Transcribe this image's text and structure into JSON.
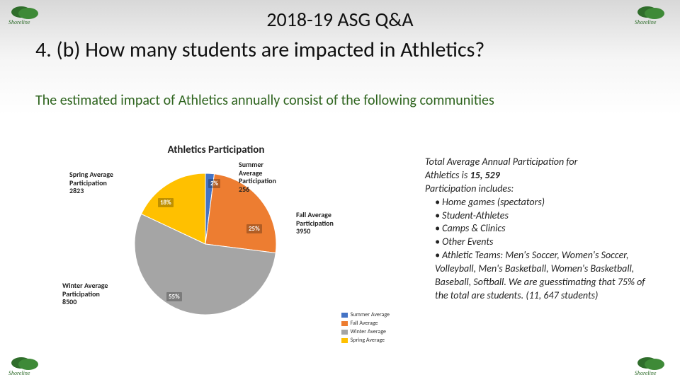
{
  "titles": {
    "line1": "2018-19 ASG Q&A",
    "line2": "4. (b) How many students are impacted in Athletics?"
  },
  "intro": "The estimated impact of Athletics annually consist of the following communities",
  "logo": {
    "text": "Shoreline",
    "leaf_color": "#2f6d2b",
    "text_color": "#2f6d2b"
  },
  "chart": {
    "type": "pie",
    "title": "Athletics Participation",
    "title_fontsize": 15,
    "background_color": "#ffffff",
    "slices": [
      {
        "label": "Summer Average Participation",
        "value": 256,
        "pct": 2,
        "color": "#4473c5"
      },
      {
        "label": "Fall Average Participation",
        "value": 3950,
        "pct": 25,
        "color": "#ed7d31"
      },
      {
        "label": "Winter Average Participation",
        "value": 8500,
        "pct": 55,
        "color": "#a5a5a5"
      },
      {
        "label": "Spring Average Participation",
        "value": 2823,
        "pct": 18,
        "color": "#ffc000"
      }
    ],
    "legend_items": [
      {
        "label": "Summer Average",
        "color": "#4473c5"
      },
      {
        "label": "Fall Average",
        "color": "#ed7d31"
      },
      {
        "label": "Winter Average",
        "color": "#a5a5a5"
      },
      {
        "label": "Spring Average",
        "color": "#ffc000"
      }
    ],
    "callouts": {
      "summer": {
        "l1": "Summer",
        "l2": "Average",
        "l3": "Participation",
        "l4": "256"
      },
      "fall": {
        "l1": "Fall Average",
        "l2": "Participation",
        "l3": "3950"
      },
      "winter": {
        "l1": "Winter Average",
        "l2": "Participation",
        "l3": "8500"
      },
      "spring": {
        "l1": "Spring Average",
        "l2": "Participation",
        "l3": "2823"
      }
    },
    "pct_labels": {
      "p2": "2%",
      "p25": "25%",
      "p55": "55%",
      "p18": "18%"
    }
  },
  "right": {
    "line1a": "Total Average Annual Participation for",
    "line1b": "Athletics is  ",
    "total": "15, 529",
    "line2": "Participation includes:",
    "b1": "Home games (spectators)",
    "b2": "Student-Athletes",
    "b3": "Camps & Clinics",
    "b4": "Other Events",
    "b5": "Athletic Teams: Men's Soccer, Women's Soccer, Volleyball, Men's Basketball, Women's Basketball, Baseball, Softball. We are guesstimating that 75% of the total are students. (11, 647 students)"
  }
}
